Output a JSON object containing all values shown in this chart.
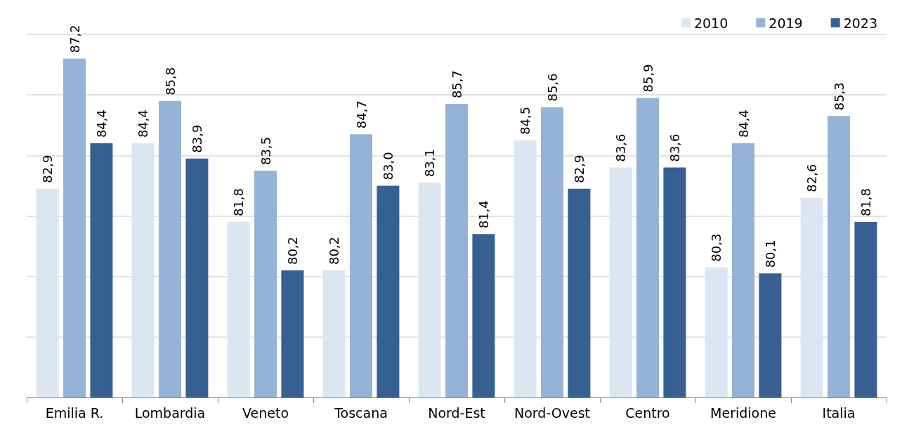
{
  "chart_data": {
    "type": "bar",
    "categories": [
      "Emilia R.",
      "Lombardia",
      "Veneto",
      "Toscana",
      "Nord-Est",
      "Nord-Ovest",
      "Centro",
      "Meridione",
      "Italia"
    ],
    "series": [
      {
        "name": "2010",
        "color": "#dce6f2",
        "values": [
          82.9,
          84.4,
          81.8,
          80.2,
          83.1,
          84.5,
          83.6,
          80.3,
          82.6
        ],
        "value_labels": [
          "82,9",
          "84,4",
          "81,8",
          "80,2",
          "83,1",
          "84,5",
          "83,6",
          "80,3",
          "82,6"
        ]
      },
      {
        "name": "2019",
        "color": "#95b3d7",
        "values": [
          87.2,
          85.8,
          83.5,
          84.7,
          85.7,
          85.6,
          85.9,
          84.4,
          85.3
        ],
        "value_labels": [
          "87,2",
          "85,8",
          "83,5",
          "84,7",
          "85,7",
          "85,6",
          "85,9",
          "84,4",
          "85,3"
        ]
      },
      {
        "name": "2023",
        "color": "#376092",
        "values": [
          84.4,
          83.9,
          80.2,
          83.0,
          81.4,
          82.9,
          83.6,
          80.1,
          81.8
        ],
        "value_labels": [
          "84,4",
          "83,9",
          "80,2",
          "83,0",
          "81,4",
          "82,9",
          "83,6",
          "80,1",
          "81,8"
        ]
      }
    ],
    "ylim": [
      76,
      88
    ],
    "yticks": [
      {
        "value": 76,
        "label": null
      },
      {
        "value": 78,
        "label": null
      },
      {
        "value": 80,
        "label": null
      },
      {
        "value": 82,
        "label": null
      },
      {
        "value": 84,
        "label": null
      },
      {
        "value": 86,
        "label": null
      },
      {
        "value": 88,
        "label": null
      }
    ],
    "tick_labels": "x",
    "grid": "y",
    "legend": "top right"
  }
}
